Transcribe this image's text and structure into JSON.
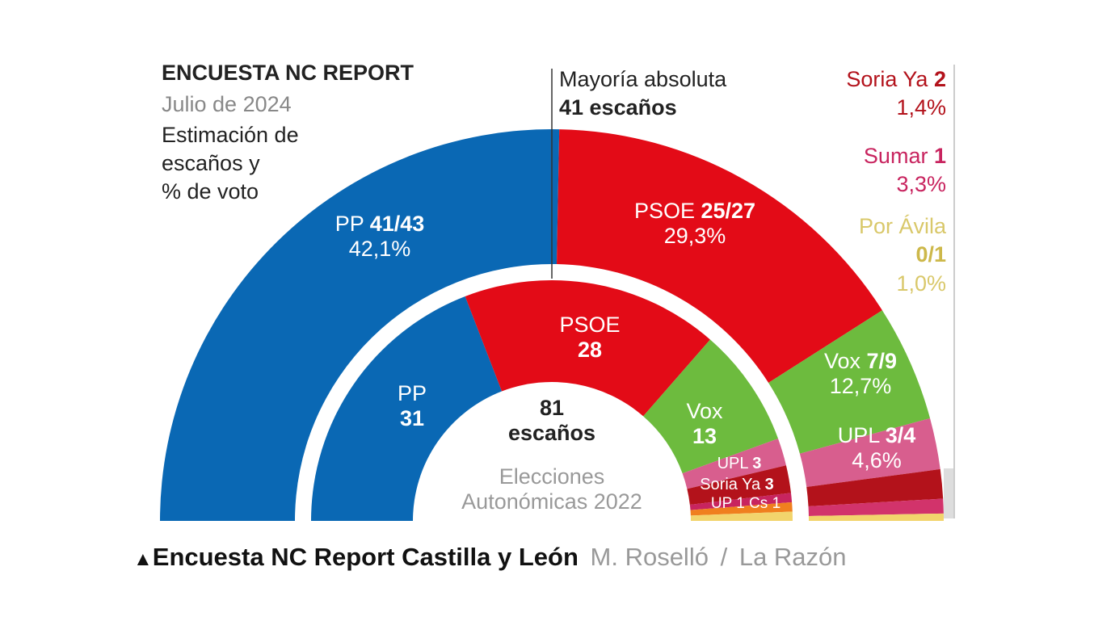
{
  "chart_data": {
    "type": "pie",
    "subtype": "hemicycle",
    "title": "ENCUESTA NC REPORT",
    "subtitle": "Julio de 2024",
    "description_lines": [
      "Estimación de",
      "escaños y",
      "% de voto"
    ],
    "total_seats": 81,
    "center_label": {
      "value": "81",
      "unit": "escaños"
    },
    "majority": {
      "label": "Mayoría absoluta",
      "value": "41 escaños",
      "seats": 41
    },
    "rings": [
      {
        "name": "Estimación Julio 2024",
        "series": [
          {
            "party": "PP",
            "seats": "41/43",
            "low": 41,
            "high": 43,
            "vote": "42,1%",
            "color": "#0a68b4"
          },
          {
            "party": "PSOE",
            "seats": "25/27",
            "low": 25,
            "high": 27,
            "vote": "29,3%",
            "color": "#e30b17"
          },
          {
            "party": "Vox",
            "seats": "7/9",
            "low": 7,
            "high": 9,
            "vote": "12,7%",
            "color": "#6dbb3e"
          },
          {
            "party": "UPL",
            "seats": "3/4",
            "low": 3,
            "high": 4,
            "vote": "4,6%",
            "color": "#d85e8e"
          },
          {
            "party": "Soria Ya",
            "seats": "2",
            "low": 2,
            "high": 2,
            "vote": "1,4%",
            "color": "#b3121b"
          },
          {
            "party": "Sumar",
            "seats": "1",
            "low": 1,
            "high": 1,
            "vote": "3,3%",
            "color": "#d2336b"
          },
          {
            "party": "Por Ávila",
            "seats": "0/1",
            "low": 0,
            "high": 1,
            "vote": "1,0%",
            "color": "#f2d46c"
          }
        ]
      },
      {
        "name": "Elecciones Autonómicas 2022",
        "label_lines": [
          "Elecciones",
          "Autonómicas 2022"
        ],
        "series": [
          {
            "party": "PP",
            "seats": 31,
            "color": "#0a68b4"
          },
          {
            "party": "PSOE",
            "seats": 28,
            "color": "#e30b17"
          },
          {
            "party": "Vox",
            "seats": 13,
            "color": "#6dbb3e"
          },
          {
            "party": "UPL",
            "seats": 3,
            "color": "#d85e8e"
          },
          {
            "party": "Soria Ya",
            "seats": 3,
            "color": "#b3121b"
          },
          {
            "party": "UP",
            "seats": 1,
            "color": "#c8245f"
          },
          {
            "party": "Cs",
            "seats": 1,
            "color": "#f07f1e"
          },
          {
            "party": "Por Ávila",
            "seats": 1,
            "color": "#f2d46c"
          }
        ]
      }
    ]
  },
  "caption": {
    "marker": "▲",
    "title": "Encuesta NC Report Castilla y León",
    "author": "M. Roselló",
    "separator": "/",
    "source": "La Razón"
  }
}
